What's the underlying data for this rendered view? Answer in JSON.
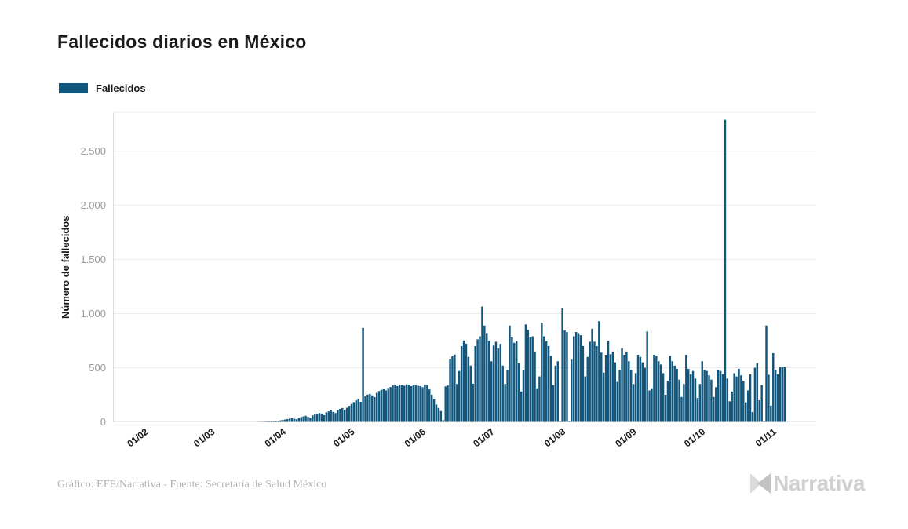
{
  "header": {
    "title": "Fallecidos diarios en México"
  },
  "legend": {
    "items": [
      {
        "label": "Fallecidos",
        "color": "#11567c"
      }
    ]
  },
  "footer": {
    "credit": "Gráfico: EFE/Narrativa - Fuente: Secretaría de Salud México",
    "brand": "Narrativa"
  },
  "chart_data": {
    "type": "bar",
    "title": "Fallecidos diarios en México",
    "series_name": "Fallecidos",
    "bar_color": "#11567c",
    "xlabel": "",
    "ylabel": "Número de fallecidos",
    "ylim": [
      0,
      2860
    ],
    "grid": true,
    "legend_position": "top-left",
    "y_ticks": [
      {
        "value": 0,
        "label": "0"
      },
      {
        "value": 500,
        "label": "500"
      },
      {
        "value": 1000,
        "label": "1.000"
      },
      {
        "value": 1500,
        "label": "1.500"
      },
      {
        "value": 2000,
        "label": "2.000"
      },
      {
        "value": 2500,
        "label": "2.500"
      }
    ],
    "x_ticks": [
      {
        "label": "01/02",
        "day_index": 15
      },
      {
        "label": "01/03",
        "day_index": 44
      },
      {
        "label": "01/04",
        "day_index": 75
      },
      {
        "label": "01/05",
        "day_index": 105
      },
      {
        "label": "01/06",
        "day_index": 136
      },
      {
        "label": "01/07",
        "day_index": 166
      },
      {
        "label": "01/08",
        "day_index": 197
      },
      {
        "label": "01/09",
        "day_index": 228
      },
      {
        "label": "01/10",
        "day_index": 258
      },
      {
        "label": "01/11",
        "day_index": 289
      }
    ],
    "values": [
      0,
      0,
      0,
      0,
      0,
      0,
      0,
      0,
      0,
      0,
      0,
      0,
      0,
      0,
      0,
      0,
      0,
      0,
      0,
      0,
      0,
      0,
      0,
      0,
      0,
      0,
      0,
      0,
      0,
      0,
      0,
      0,
      0,
      0,
      0,
      0,
      0,
      0,
      0,
      0,
      0,
      0,
      0,
      0,
      0,
      0,
      0,
      0,
      0,
      0,
      0,
      0,
      0,
      0,
      0,
      0,
      0,
      0,
      0,
      0,
      0,
      0,
      1,
      1,
      2,
      2,
      3,
      4,
      5,
      6,
      8,
      10,
      14,
      18,
      22,
      25,
      30,
      34,
      28,
      24,
      38,
      44,
      50,
      56,
      46,
      40,
      60,
      68,
      75,
      82,
      72,
      62,
      88,
      96,
      105,
      92,
      82,
      112,
      120,
      128,
      112,
      130,
      148,
      165,
      182,
      198,
      212,
      185,
      868,
      235,
      252,
      258,
      245,
      228,
      268,
      285,
      296,
      306,
      290,
      312,
      322,
      336,
      342,
      330,
      345,
      340,
      334,
      346,
      340,
      330,
      344,
      338,
      334,
      330,
      320,
      345,
      340,
      300,
      252,
      208,
      160,
      128,
      100,
      15,
      328,
      336,
      580,
      605,
      622,
      350,
      470,
      700,
      752,
      722,
      600,
      520,
      352,
      700,
      762,
      790,
      1065,
      890,
      820,
      748,
      560,
      705,
      740,
      680,
      720,
      520,
      350,
      480,
      890,
      780,
      730,
      745,
      540,
      280,
      480,
      900,
      850,
      780,
      790,
      650,
      310,
      420,
      915,
      790,
      745,
      700,
      610,
      340,
      520,
      560,
      5,
      1050,
      845,
      830,
      10,
      575,
      790,
      830,
      820,
      800,
      700,
      420,
      600,
      740,
      860,
      740,
      700,
      930,
      640,
      455,
      620,
      750,
      625,
      650,
      550,
      370,
      480,
      680,
      620,
      650,
      560,
      480,
      350,
      450,
      620,
      600,
      550,
      500,
      835,
      290,
      310,
      620,
      610,
      560,
      530,
      450,
      250,
      380,
      610,
      560,
      520,
      490,
      390,
      230,
      350,
      620,
      490,
      440,
      470,
      400,
      220,
      350,
      560,
      480,
      470,
      430,
      390,
      230,
      320,
      480,
      470,
      440,
      2790,
      400,
      190,
      280,
      450,
      420,
      490,
      430,
      380,
      180,
      290,
      440,
      90,
      500,
      545,
      200,
      340,
      5,
      890,
      435,
      150,
      635,
      480,
      440,
      505,
      510,
      505
    ]
  }
}
